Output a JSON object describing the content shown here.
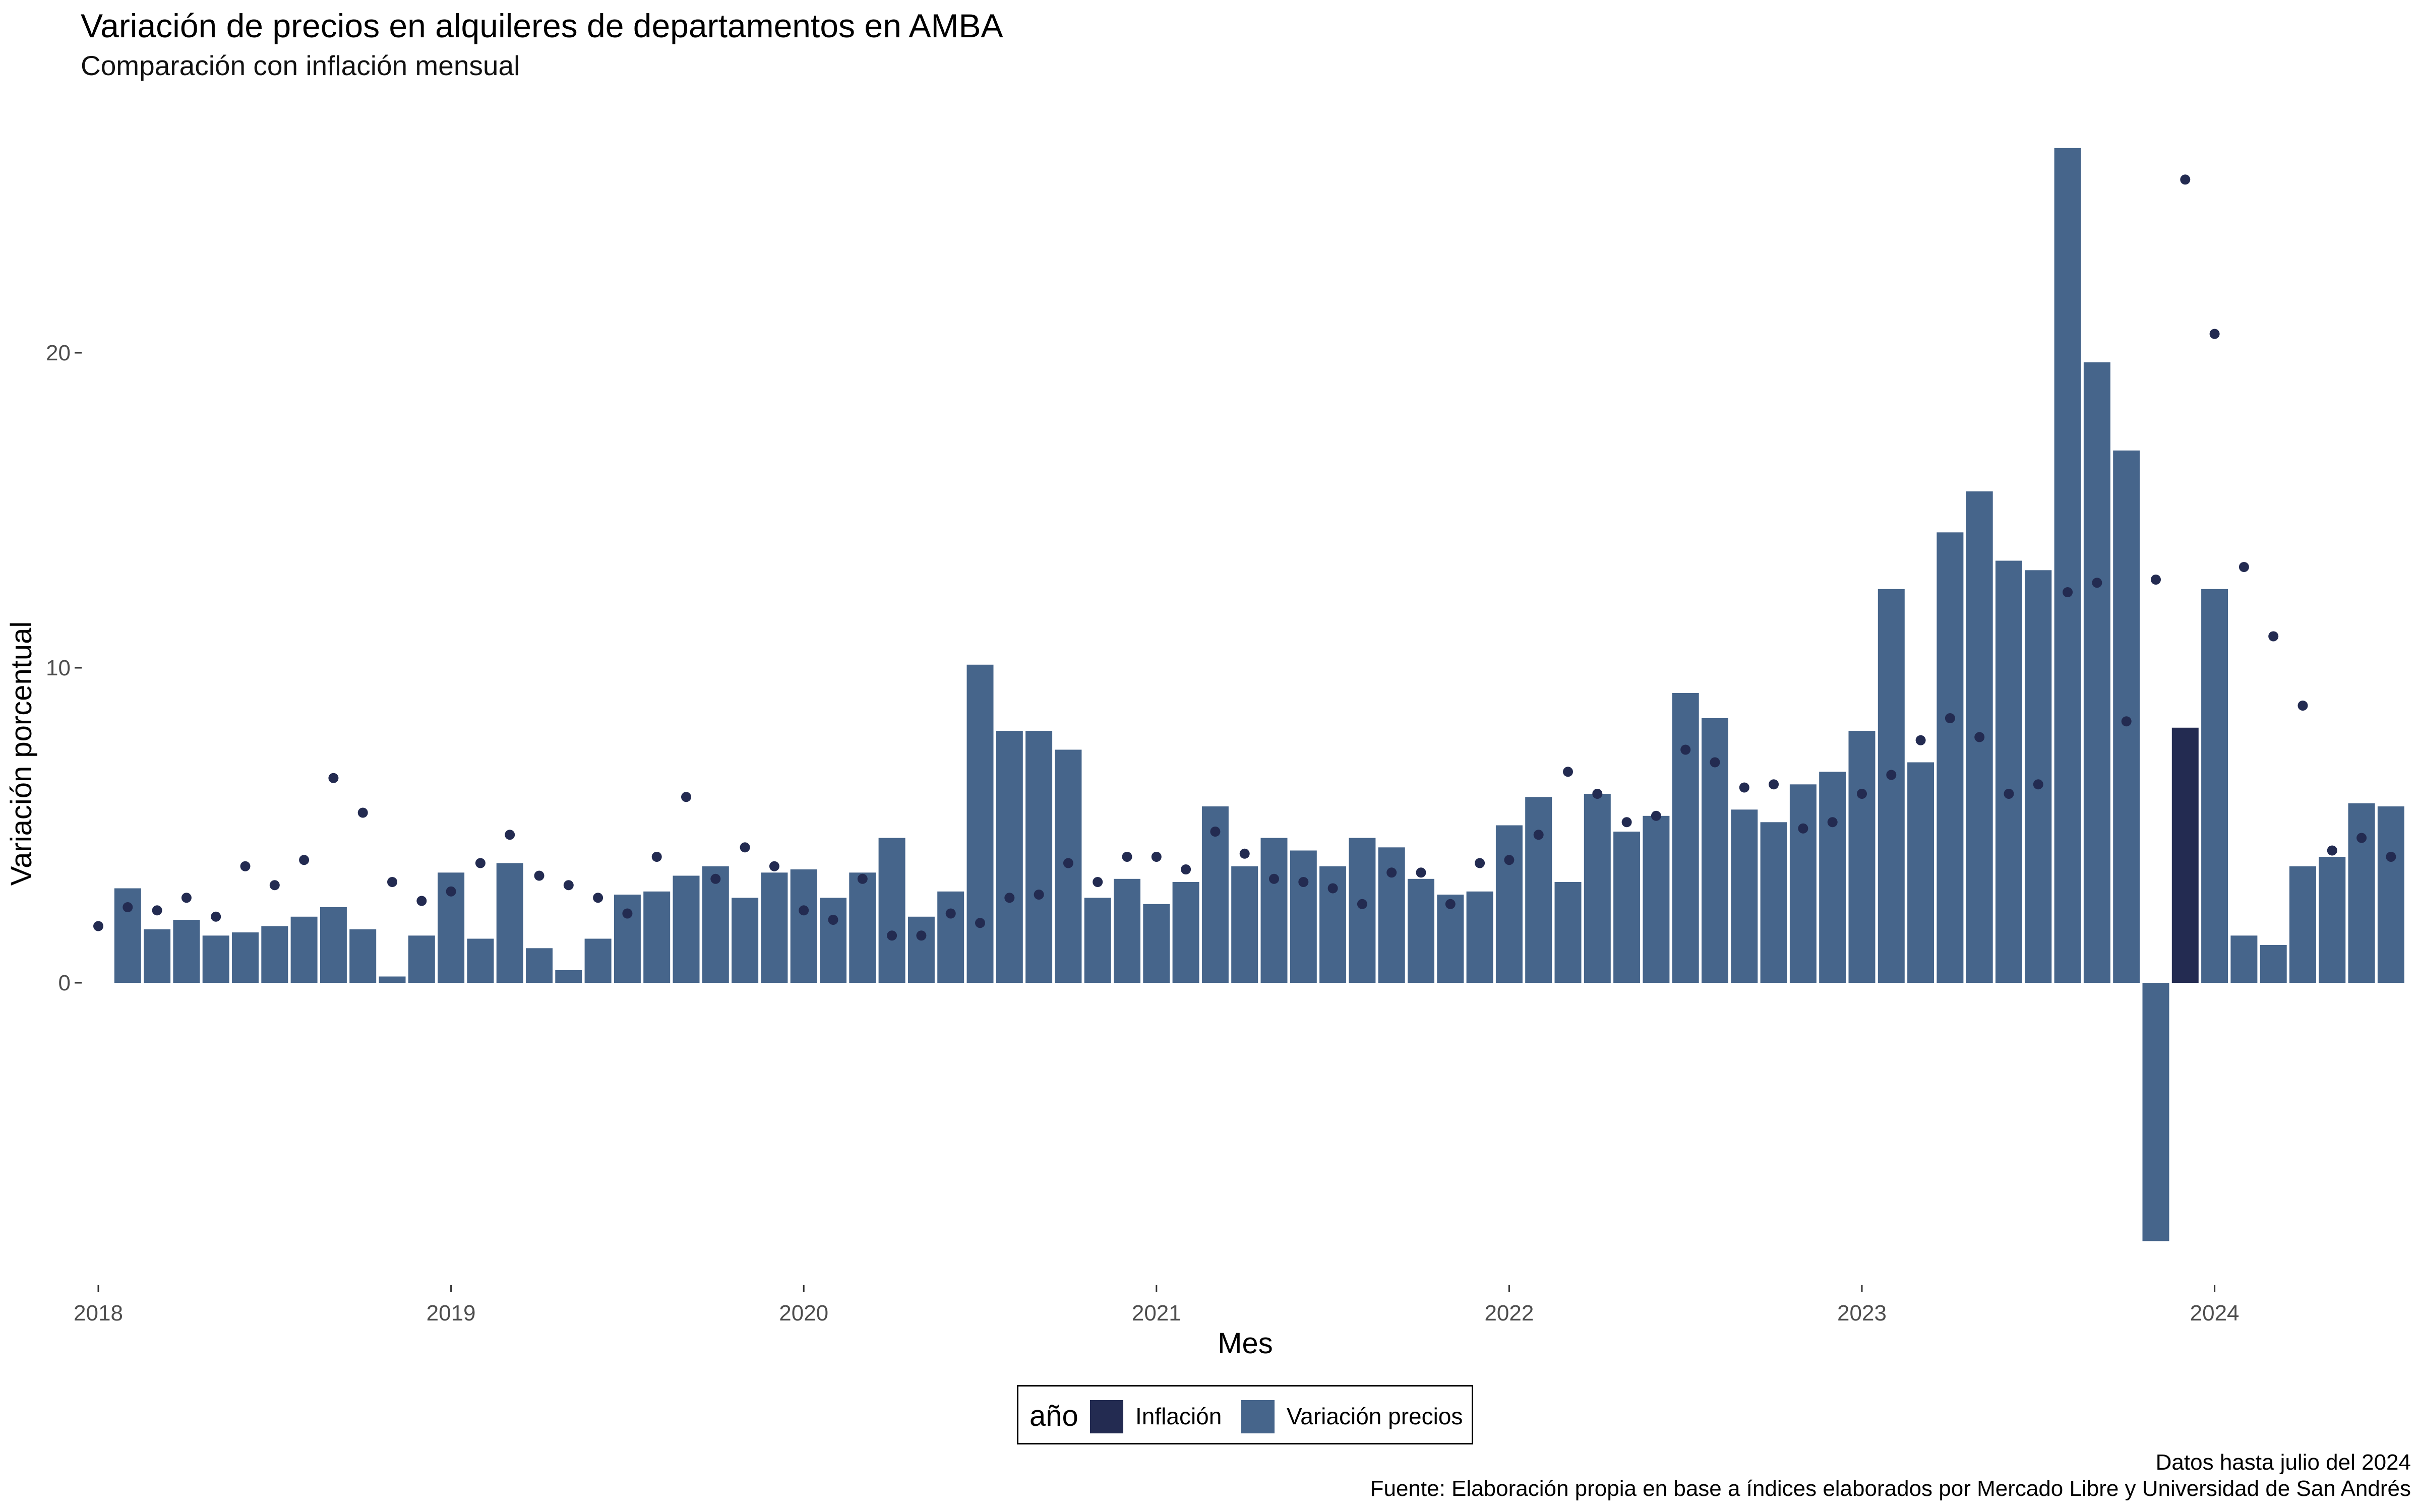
{
  "header": {
    "title": "Variación de precios en alquileres de departamentos en AMBA",
    "subtitle": "Comparación con inflación mensual"
  },
  "legend": {
    "title": "año",
    "items": [
      {
        "label": "Inflación",
        "color": "#232B51"
      },
      {
        "label": "Variación precios",
        "color": "#46658B"
      }
    ]
  },
  "caption": {
    "line1": "Datos hasta julio del 2024",
    "line2": "Fuente: Elaboración propia en base a índices elaborados por Mercado Libre y Universidad de San Andrés"
  },
  "chart_data": {
    "type": "bar",
    "title": "Variación de precios en alquileres de departamentos en AMBA",
    "subtitle": "Comparación con inflación mensual",
    "xlabel": "Mes",
    "ylabel": "Variación porcentual",
    "x_tick_labels": [
      "2018",
      "2019",
      "2020",
      "2021",
      "2022",
      "2023",
      "2024"
    ],
    "y_ticks": [
      0,
      10,
      20
    ],
    "ylim": [
      -9.6,
      27.2
    ],
    "grid": false,
    "legend_position": "bottom",
    "colors": {
      "bars": "#46658B",
      "highlight_bar": "#232B51",
      "points": "#232B51"
    },
    "highlight_month": "2023-12",
    "months": [
      "2018-01",
      "2018-02",
      "2018-03",
      "2018-04",
      "2018-05",
      "2018-06",
      "2018-07",
      "2018-08",
      "2018-09",
      "2018-10",
      "2018-11",
      "2018-12",
      "2019-01",
      "2019-02",
      "2019-03",
      "2019-04",
      "2019-05",
      "2019-06",
      "2019-07",
      "2019-08",
      "2019-09",
      "2019-10",
      "2019-11",
      "2019-12",
      "2020-01",
      "2020-02",
      "2020-03",
      "2020-04",
      "2020-05",
      "2020-06",
      "2020-07",
      "2020-08",
      "2020-09",
      "2020-10",
      "2020-11",
      "2020-12",
      "2021-01",
      "2021-02",
      "2021-03",
      "2021-04",
      "2021-05",
      "2021-06",
      "2021-07",
      "2021-08",
      "2021-09",
      "2021-10",
      "2021-11",
      "2021-12",
      "2022-01",
      "2022-02",
      "2022-03",
      "2022-04",
      "2022-05",
      "2022-06",
      "2022-07",
      "2022-08",
      "2022-09",
      "2022-10",
      "2022-11",
      "2022-12",
      "2023-01",
      "2023-02",
      "2023-03",
      "2023-04",
      "2023-05",
      "2023-06",
      "2023-07",
      "2023-08",
      "2023-09",
      "2023-10",
      "2023-11",
      "2023-12",
      "2024-01",
      "2024-02",
      "2024-03",
      "2024-04",
      "2024-05",
      "2024-06",
      "2024-07"
    ],
    "series": [
      {
        "name": "Variación precios",
        "values": [
          null,
          3.0,
          1.7,
          2.0,
          1.5,
          1.6,
          1.8,
          2.1,
          2.4,
          1.7,
          0.2,
          1.5,
          3.5,
          1.4,
          3.8,
          1.1,
          0.4,
          1.4,
          2.8,
          2.9,
          3.4,
          3.7,
          2.7,
          3.5,
          3.6,
          2.7,
          3.5,
          4.6,
          2.1,
          2.9,
          10.1,
          8.0,
          8.0,
          7.4,
          2.7,
          3.3,
          2.5,
          3.2,
          5.6,
          3.7,
          4.6,
          4.2,
          3.7,
          4.6,
          4.3,
          3.3,
          2.8,
          2.9,
          5.0,
          5.9,
          3.2,
          6.0,
          4.8,
          5.3,
          9.2,
          8.4,
          5.5,
          5.1,
          6.3,
          6.7,
          8.0,
          12.5,
          7.0,
          14.3,
          15.6,
          13.4,
          13.1,
          26.5,
          19.7,
          16.9,
          -8.2,
          8.1,
          12.5,
          1.5,
          1.2,
          3.7,
          4.0,
          5.7,
          5.6
        ]
      },
      {
        "name": "Inflación",
        "values": [
          1.8,
          2.4,
          2.3,
          2.7,
          2.1,
          3.7,
          3.1,
          3.9,
          6.5,
          5.4,
          3.2,
          2.6,
          2.9,
          3.8,
          4.7,
          3.4,
          3.1,
          2.7,
          2.2,
          4.0,
          5.9,
          3.3,
          4.3,
          3.7,
          2.3,
          2.0,
          3.3,
          1.5,
          1.5,
          2.2,
          1.9,
          2.7,
          2.8,
          3.8,
          3.2,
          4.0,
          4.0,
          3.6,
          4.8,
          4.1,
          3.3,
          3.2,
          3.0,
          2.5,
          3.5,
          3.5,
          2.5,
          3.8,
          3.9,
          4.7,
          6.7,
          6.0,
          5.1,
          5.3,
          7.4,
          7.0,
          6.2,
          6.3,
          4.9,
          5.1,
          6.0,
          6.6,
          7.7,
          8.4,
          7.8,
          6.0,
          6.3,
          12.4,
          12.7,
          8.3,
          12.8,
          25.5,
          20.6,
          13.2,
          11.0,
          8.8,
          4.2,
          4.6,
          4.0
        ]
      }
    ]
  }
}
